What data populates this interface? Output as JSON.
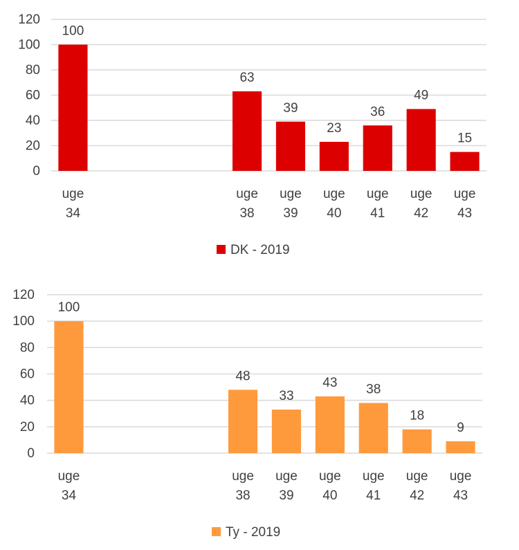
{
  "chart_data": [
    {
      "type": "bar",
      "categories": [
        [
          "uge",
          "34"
        ],
        [
          "",
          ""
        ],
        [
          "",
          ""
        ],
        [
          "",
          ""
        ],
        [
          "uge",
          "38"
        ],
        [
          "uge",
          "39"
        ],
        [
          "uge",
          "40"
        ],
        [
          "uge",
          "41"
        ],
        [
          "uge",
          "42"
        ],
        [
          "uge",
          "43"
        ]
      ],
      "series": [
        {
          "name": "DK - 2019",
          "values": [
            100,
            null,
            null,
            null,
            63,
            39,
            23,
            36,
            49,
            15
          ],
          "color": "#dd0000"
        }
      ],
      "yticks": [
        "0",
        "20",
        "40",
        "60",
        "80",
        "100",
        "120"
      ],
      "ylim": [
        0,
        120
      ],
      "grid": true,
      "legend": "bottom-center"
    },
    {
      "type": "bar",
      "categories": [
        [
          "uge",
          "34"
        ],
        [
          "",
          ""
        ],
        [
          "",
          ""
        ],
        [
          "",
          ""
        ],
        [
          "uge",
          "38"
        ],
        [
          "uge",
          "39"
        ],
        [
          "uge",
          "40"
        ],
        [
          "uge",
          "41"
        ],
        [
          "uge",
          "42"
        ],
        [
          "uge",
          "43"
        ]
      ],
      "series": [
        {
          "name": "Ty - 2019",
          "values": [
            100,
            null,
            null,
            null,
            48,
            33,
            43,
            38,
            18,
            9
          ],
          "color": "#ff9a3c"
        }
      ],
      "yticks": [
        "0",
        "20",
        "40",
        "60",
        "80",
        "100",
        "120"
      ],
      "ylim": [
        0,
        120
      ],
      "grid": true,
      "legend": "bottom-center"
    }
  ]
}
